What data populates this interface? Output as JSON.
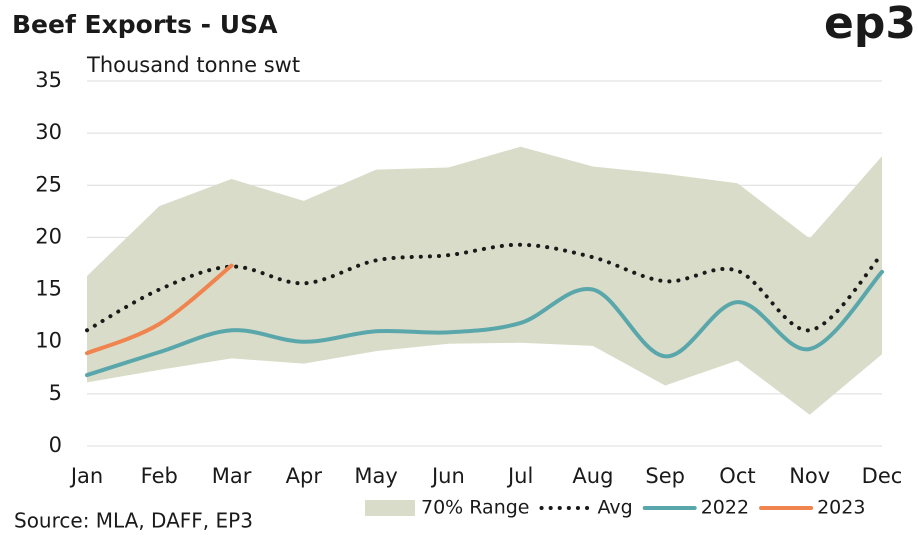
{
  "logo": "ep3",
  "chart_data": {
    "type": "line",
    "title": "Beef Exports - USA",
    "y_label": "Thousand tonne swt",
    "source": "Source: MLA, DAFF, EP3",
    "categories": [
      "Jan",
      "Feb",
      "Mar",
      "Apr",
      "May",
      "Jun",
      "Jul",
      "Aug",
      "Sep",
      "Oct",
      "Nov",
      "Dec"
    ],
    "ylim": [
      0,
      35
    ],
    "yticks": [
      0,
      5,
      10,
      15,
      20,
      25,
      30,
      35
    ],
    "grid": true,
    "legend": "bottom",
    "series": [
      {
        "name": "70% Range",
        "kind": "band",
        "color": "#d9dcc8",
        "values": [
          16.3,
          23,
          25.6,
          23.5,
          26.5,
          26.7,
          28.7,
          26.8,
          26.1,
          25.2,
          19.9,
          27.8
        ],
        "low": [
          6.1,
          7.3,
          8.4,
          7.9,
          9.1,
          9.8,
          9.9,
          9.6,
          5.8,
          8.2,
          3.0,
          8.8
        ]
      },
      {
        "name": "Avg",
        "kind": "dotted",
        "color": "#1a1a1a",
        "values": [
          11.1,
          15,
          17.2,
          15.6,
          17.8,
          18.3,
          19.3,
          18.1,
          15.8,
          16.8,
          11.1,
          18.4
        ]
      },
      {
        "name": "2022",
        "kind": "solid",
        "color": "#5aa7ab",
        "values": [
          6.8,
          9,
          11.1,
          10,
          11,
          10.9,
          11.8,
          15,
          8.6,
          13.8,
          9.3,
          16.7
        ]
      },
      {
        "name": "2023",
        "kind": "solid",
        "color": "#f0844f",
        "values": [
          8.9,
          11.7,
          17.3,
          null,
          null,
          null,
          null,
          null,
          null,
          null,
          null,
          null
        ]
      }
    ]
  }
}
